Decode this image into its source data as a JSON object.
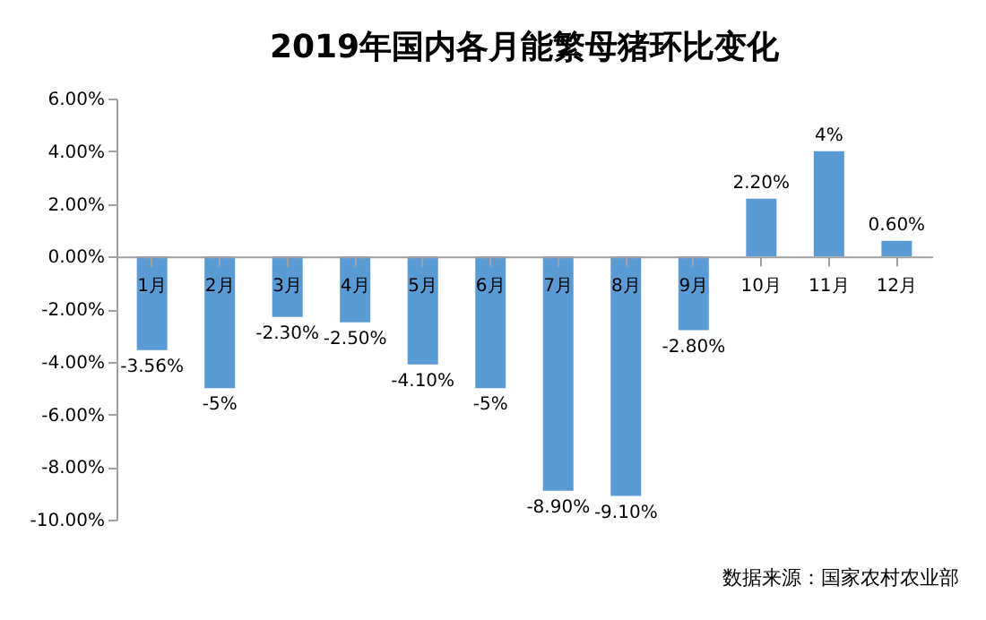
{
  "chart_data": {
    "type": "bar",
    "title": "2019年国内各月能繁母猪环比变化",
    "categories": [
      "1月",
      "2月",
      "3月",
      "4月",
      "5月",
      "6月",
      "7月",
      "8月",
      "9月",
      "10月",
      "11月",
      "12月"
    ],
    "values": [
      -3.56,
      -5,
      -2.3,
      -2.5,
      -4.1,
      -5,
      -8.9,
      -9.1,
      -2.8,
      2.2,
      4,
      0.6
    ],
    "value_labels": [
      "-3.56%",
      "-5%",
      "-2.30%",
      "-2.50%",
      "-4.10%",
      "-5%",
      "-8.90%",
      "-9.10%",
      "-2.80%",
      "2.20%",
      "4%",
      "0.60%"
    ],
    "color": "#5b9bd5",
    "ylim": [
      -10,
      6
    ],
    "yticks": [
      {
        "value": -10,
        "label": "-10.00%"
      },
      {
        "value": -8,
        "label": "-8.00%"
      },
      {
        "value": -6,
        "label": "-6.00%"
      },
      {
        "value": -4,
        "label": "-4.00%"
      },
      {
        "value": -2,
        "label": "-2.00%"
      },
      {
        "value": 0,
        "label": "0.00%"
      },
      {
        "value": 2,
        "label": "2.00%"
      },
      {
        "value": 4,
        "label": "4.00%"
      },
      {
        "value": 6,
        "label": "6.00%"
      }
    ],
    "grid": false,
    "annotations": [
      "数据来源：国家农村农业部"
    ]
  }
}
